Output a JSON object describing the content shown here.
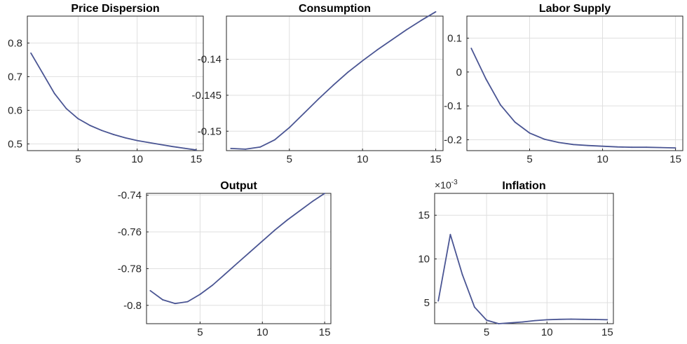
{
  "colors": {
    "line": "#4a5593",
    "grid": "#dfdfdf",
    "axis": "#262626"
  },
  "chart_data": [
    {
      "type": "line",
      "title": "Price Dispersion",
      "x": [
        1,
        2,
        3,
        4,
        5,
        6,
        7,
        8,
        9,
        10,
        11,
        12,
        13,
        14,
        15
      ],
      "series": [
        {
          "values": [
            0.77,
            0.71,
            0.65,
            0.605,
            0.575,
            0.555,
            0.54,
            0.528,
            0.518,
            0.51,
            0.504,
            0.498,
            0.492,
            0.487,
            0.482
          ]
        }
      ],
      "xlim": [
        0.7,
        15.6
      ],
      "ylim": [
        0.48,
        0.88
      ],
      "xticks": [
        5,
        10,
        15
      ],
      "xtick_labels": [
        "5",
        "10",
        "15"
      ],
      "yticks": [
        0.5,
        0.6,
        0.7,
        0.8
      ],
      "ytick_labels": [
        "0.5",
        "0.6",
        "0.7",
        "0.8"
      ],
      "grid": true
    },
    {
      "type": "line",
      "title": "Consumption",
      "x": [
        1,
        2,
        3,
        4,
        5,
        6,
        7,
        8,
        9,
        10,
        11,
        12,
        13,
        14,
        15
      ],
      "series": [
        {
          "values": [
            -0.1524,
            -0.1525,
            -0.1522,
            -0.1512,
            -0.1495,
            -0.1475,
            -0.1455,
            -0.1436,
            -0.1418,
            -0.1402,
            -0.1387,
            -0.1373,
            -0.1359,
            -0.1346,
            -0.1334
          ]
        }
      ],
      "xlim": [
        0.7,
        15.5
      ],
      "ylim": [
        -0.1527,
        -0.134
      ],
      "xticks": [
        5,
        10,
        15
      ],
      "xtick_labels": [
        "5",
        "10",
        "15"
      ],
      "yticks": [
        -0.15,
        -0.145,
        -0.14
      ],
      "ytick_labels": [
        "-0.15",
        "-0.145",
        "-0.14"
      ],
      "grid": true
    },
    {
      "type": "line",
      "title": "Labor Supply",
      "x": [
        1,
        2,
        3,
        4,
        5,
        6,
        7,
        8,
        9,
        10,
        11,
        12,
        13,
        14,
        15
      ],
      "series": [
        {
          "values": [
            0.07,
            -0.02,
            -0.097,
            -0.148,
            -0.18,
            -0.198,
            -0.208,
            -0.214,
            -0.217,
            -0.219,
            -0.221,
            -0.222,
            -0.222,
            -0.223,
            -0.224
          ]
        }
      ],
      "xlim": [
        0.7,
        15.5
      ],
      "ylim": [
        -0.232,
        0.165
      ],
      "xticks": [
        5,
        10,
        15
      ],
      "xtick_labels": [
        "5",
        "10",
        "15"
      ],
      "yticks": [
        -0.2,
        -0.1,
        0,
        0.1
      ],
      "ytick_labels": [
        "-0.2",
        "-0.1",
        "0",
        "0.1"
      ],
      "grid": true
    },
    {
      "type": "line",
      "title": "Output",
      "x": [
        1,
        2,
        3,
        4,
        5,
        6,
        7,
        8,
        9,
        10,
        11,
        12,
        13,
        14,
        15
      ],
      "series": [
        {
          "values": [
            -0.792,
            -0.797,
            -0.799,
            -0.798,
            -0.794,
            -0.789,
            -0.783,
            -0.777,
            -0.771,
            -0.765,
            -0.759,
            -0.7535,
            -0.7485,
            -0.7435,
            -0.739
          ]
        }
      ],
      "xlim": [
        0.7,
        15.5
      ],
      "ylim": [
        -0.81,
        -0.739
      ],
      "xticks": [
        5,
        10,
        15
      ],
      "xtick_labels": [
        "5",
        "10",
        "15"
      ],
      "yticks": [
        -0.8,
        -0.78,
        -0.76,
        -0.74
      ],
      "ytick_labels": [
        "-0.8",
        "-0.78",
        "-0.76",
        "-0.74"
      ],
      "grid": true
    },
    {
      "type": "line",
      "title": "Inflation",
      "y_multiplier": {
        "base": "×10",
        "exponent": "-3"
      },
      "x": [
        1,
        2,
        3,
        4,
        5,
        6,
        7,
        8,
        9,
        10,
        11,
        12,
        13,
        14,
        15
      ],
      "series": [
        {
          "values": [
            5.2,
            12.8,
            8.2,
            4.5,
            3.0,
            2.6,
            2.7,
            2.8,
            2.95,
            3.05,
            3.1,
            3.12,
            3.1,
            3.08,
            3.05
          ]
        }
      ],
      "xlim": [
        0.7,
        15.5
      ],
      "ylim": [
        2.6,
        17.5
      ],
      "xticks": [
        5,
        10,
        15
      ],
      "xtick_labels": [
        "5",
        "10",
        "15"
      ],
      "yticks": [
        5,
        10,
        15
      ],
      "ytick_labels": [
        "5",
        "10",
        "15"
      ],
      "grid": true
    }
  ]
}
